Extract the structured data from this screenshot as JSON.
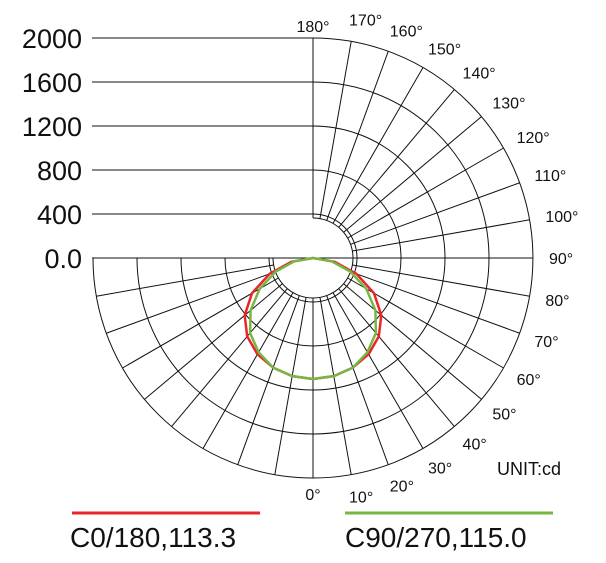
{
  "chart_data": {
    "type": "polar",
    "unit_label": "UNIT:cd",
    "radial_ticks": [
      2000,
      1600,
      1200,
      800,
      400
    ],
    "radial_tick_labels": [
      "2000",
      "1600",
      "1200",
      "800",
      "400",
      "0.0"
    ],
    "angle_tick_labels": [
      "0°",
      "10°",
      "20°",
      "30°",
      "40°",
      "50°",
      "60°",
      "70°",
      "80°",
      "90°",
      "100°",
      "110°",
      "120°",
      "130°",
      "140°",
      "150°",
      "160°",
      "170°",
      "180°"
    ],
    "series": [
      {
        "name": "C0/180,113.3",
        "color": "#e8262b",
        "angles": [
          0,
          10,
          20,
          30,
          40,
          50,
          60,
          70,
          80,
          90
        ],
        "values": [
          1100,
          1090,
          1060,
          1010,
          930,
          810,
          640,
          420,
          200,
          0
        ]
      },
      {
        "name": "C90/270,115.0",
        "color": "#74b843",
        "angles": [
          0,
          10,
          20,
          30,
          40,
          50,
          60,
          70,
          80,
          90
        ],
        "values": [
          1100,
          1090,
          1060,
          990,
          890,
          740,
          560,
          360,
          170,
          0
        ]
      }
    ]
  }
}
